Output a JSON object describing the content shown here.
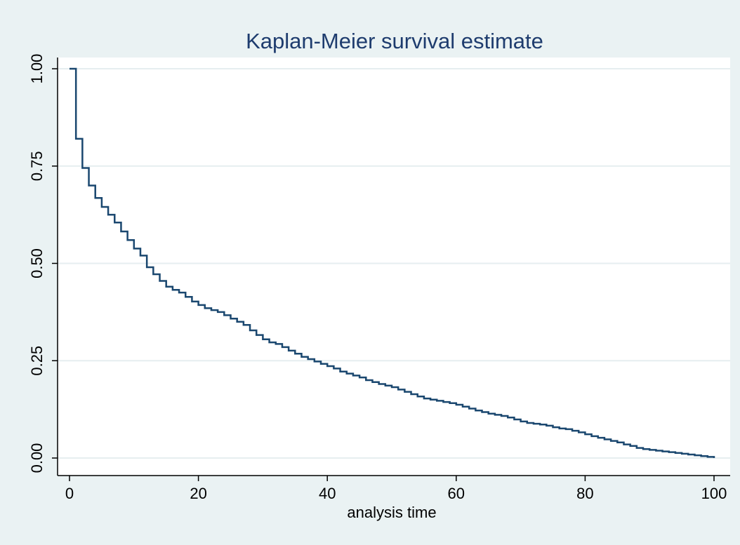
{
  "chart_data": {
    "type": "line",
    "title": "Kaplan-Meier survival estimate",
    "xlabel": "analysis time",
    "ylabel": "",
    "xlim": [
      0,
      100
    ],
    "ylim": [
      0,
      1
    ],
    "x_ticks": [
      0,
      20,
      40,
      60,
      80,
      100
    ],
    "x_tick_labels": [
      "0",
      "20",
      "40",
      "60",
      "80",
      "100"
    ],
    "y_ticks": [
      0,
      0.25,
      0.5,
      0.75,
      1
    ],
    "y_tick_labels": [
      "0.00",
      "0.25",
      "0.50",
      "0.75",
      "1.00"
    ],
    "grid": "horizontal",
    "legend": "none",
    "step": true,
    "series": [
      {
        "color": "#1a476f",
        "x": [
          0,
          1,
          2,
          3,
          4,
          5,
          6,
          7,
          8,
          9,
          10,
          11,
          12,
          13,
          14,
          15,
          16,
          17,
          18,
          19,
          20,
          21,
          22,
          23,
          24,
          25,
          26,
          27,
          28,
          29,
          30,
          31,
          32,
          33,
          34,
          35,
          36,
          37,
          38,
          39,
          40,
          41,
          42,
          43,
          44,
          45,
          46,
          47,
          48,
          49,
          50,
          51,
          52,
          53,
          54,
          55,
          56,
          57,
          58,
          59,
          60,
          61,
          62,
          63,
          64,
          65,
          66,
          67,
          68,
          69,
          70,
          71,
          72,
          73,
          74,
          75,
          76,
          77,
          78,
          79,
          80,
          81,
          82,
          83,
          84,
          85,
          86,
          87,
          88,
          89,
          90,
          91,
          92,
          93,
          94,
          95,
          96,
          97,
          98,
          99,
          100
        ],
        "y": [
          1.0,
          0.82,
          0.745,
          0.7,
          0.668,
          0.645,
          0.625,
          0.605,
          0.582,
          0.56,
          0.538,
          0.52,
          0.49,
          0.472,
          0.455,
          0.44,
          0.432,
          0.425,
          0.414,
          0.402,
          0.393,
          0.385,
          0.38,
          0.375,
          0.367,
          0.358,
          0.35,
          0.342,
          0.328,
          0.316,
          0.305,
          0.297,
          0.293,
          0.285,
          0.276,
          0.268,
          0.26,
          0.254,
          0.248,
          0.242,
          0.236,
          0.23,
          0.222,
          0.217,
          0.212,
          0.207,
          0.2,
          0.195,
          0.19,
          0.186,
          0.182,
          0.176,
          0.17,
          0.164,
          0.158,
          0.153,
          0.15,
          0.147,
          0.144,
          0.141,
          0.137,
          0.132,
          0.127,
          0.122,
          0.118,
          0.114,
          0.111,
          0.108,
          0.104,
          0.099,
          0.094,
          0.09,
          0.088,
          0.086,
          0.083,
          0.079,
          0.076,
          0.074,
          0.07,
          0.066,
          0.061,
          0.056,
          0.052,
          0.048,
          0.044,
          0.04,
          0.035,
          0.031,
          0.026,
          0.023,
          0.021,
          0.019,
          0.017,
          0.015,
          0.013,
          0.011,
          0.009,
          0.007,
          0.005,
          0.003,
          0.0
        ]
      }
    ]
  }
}
